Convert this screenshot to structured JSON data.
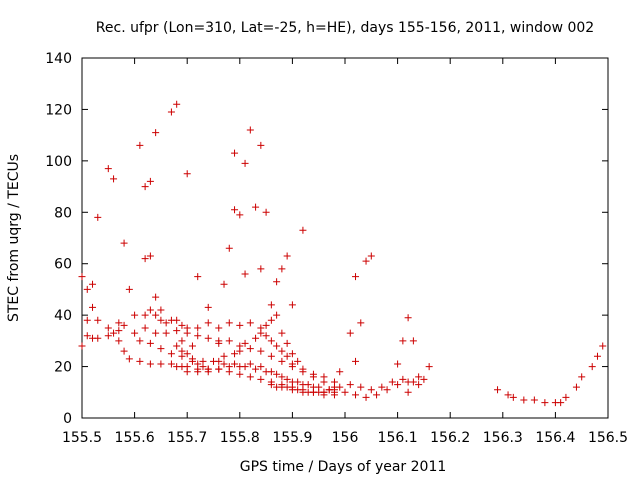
{
  "chart_data": {
    "type": "scatter",
    "title": "Rec. ufpr (Lon=310, Lat=-25, h=HE), days 155-156, 2011, window 002",
    "xlabel": "GPS time / Days of year 2011",
    "ylabel": "STEC from uqrg / TECUs",
    "xlim": [
      155.5,
      156.5
    ],
    "ylim": [
      0,
      140
    ],
    "xticks": [
      155.5,
      155.6,
      155.7,
      155.8,
      155.9,
      156.0,
      156.1,
      156.2,
      156.3,
      156.4,
      156.5
    ],
    "xtick_labels": [
      "155.5",
      "155.6",
      "155.7",
      "155.8",
      "155.9",
      "156",
      "156.1",
      "156.2",
      "156.3",
      "156.4",
      "156.5"
    ],
    "yticks": [
      0,
      20,
      40,
      60,
      80,
      100,
      120,
      140
    ],
    "ytick_labels": [
      "0",
      "20",
      "40",
      "60",
      "80",
      "100",
      "120",
      "140"
    ],
    "marker": "+",
    "marker_color": "#cc0000",
    "grid": false,
    "series": [
      {
        "name": "STEC",
        "points": [
          [
            155.5,
            55
          ],
          [
            155.51,
            50
          ],
          [
            155.52,
            52
          ],
          [
            155.52,
            43
          ],
          [
            155.51,
            38
          ],
          [
            155.53,
            38
          ],
          [
            155.55,
            35
          ],
          [
            155.57,
            34
          ],
          [
            155.6,
            40
          ],
          [
            155.62,
            40
          ],
          [
            155.63,
            42
          ],
          [
            155.64,
            40
          ],
          [
            155.65,
            38
          ],
          [
            155.66,
            37
          ],
          [
            155.68,
            38
          ],
          [
            155.69,
            36
          ],
          [
            155.7,
            35
          ],
          [
            155.5,
            28
          ],
          [
            155.51,
            32
          ],
          [
            155.52,
            31
          ],
          [
            155.53,
            31
          ],
          [
            155.55,
            32
          ],
          [
            155.56,
            33
          ],
          [
            155.57,
            37
          ],
          [
            155.58,
            36
          ],
          [
            155.53,
            78
          ],
          [
            155.55,
            97
          ],
          [
            155.56,
            93
          ],
          [
            155.58,
            68
          ],
          [
            155.59,
            50
          ],
          [
            155.61,
            106
          ],
          [
            155.62,
            90
          ],
          [
            155.63,
            92
          ],
          [
            155.64,
            111
          ],
          [
            155.67,
            119
          ],
          [
            155.68,
            122
          ],
          [
            155.7,
            95
          ],
          [
            155.57,
            30
          ],
          [
            155.58,
            26
          ],
          [
            155.59,
            23
          ],
          [
            155.61,
            22
          ],
          [
            155.63,
            21
          ],
          [
            155.65,
            21
          ],
          [
            155.67,
            21
          ],
          [
            155.68,
            20
          ],
          [
            155.69,
            20
          ],
          [
            155.7,
            20
          ],
          [
            155.72,
            19
          ],
          [
            155.74,
            19
          ],
          [
            155.76,
            19
          ],
          [
            155.78,
            18
          ],
          [
            155.8,
            17
          ],
          [
            155.82,
            16
          ],
          [
            155.84,
            15
          ],
          [
            155.86,
            14
          ],
          [
            155.88,
            13
          ],
          [
            155.9,
            12
          ],
          [
            155.92,
            11
          ],
          [
            155.94,
            10
          ],
          [
            155.96,
            9
          ],
          [
            155.98,
            9
          ],
          [
            155.6,
            33
          ],
          [
            155.62,
            35
          ],
          [
            155.64,
            33
          ],
          [
            155.66,
            33
          ],
          [
            155.68,
            34
          ],
          [
            155.7,
            33
          ],
          [
            155.72,
            32
          ],
          [
            155.74,
            31
          ],
          [
            155.76,
            30
          ],
          [
            155.78,
            30
          ],
          [
            155.8,
            28
          ],
          [
            155.82,
            27
          ],
          [
            155.84,
            26
          ],
          [
            155.86,
            24
          ],
          [
            155.88,
            22
          ],
          [
            155.9,
            20
          ],
          [
            155.92,
            18
          ],
          [
            155.94,
            16
          ],
          [
            155.96,
            14
          ],
          [
            155.98,
            12
          ],
          [
            155.61,
            30
          ],
          [
            155.63,
            29
          ],
          [
            155.65,
            27
          ],
          [
            155.67,
            25
          ],
          [
            155.69,
            24
          ],
          [
            155.71,
            23
          ],
          [
            155.73,
            22
          ],
          [
            155.75,
            22
          ],
          [
            155.77,
            21
          ],
          [
            155.79,
            21
          ],
          [
            155.81,
            20
          ],
          [
            155.83,
            19
          ],
          [
            155.85,
            18
          ],
          [
            155.87,
            17
          ],
          [
            155.89,
            15
          ],
          [
            155.91,
            14
          ],
          [
            155.93,
            13
          ],
          [
            155.95,
            12
          ],
          [
            155.97,
            11
          ],
          [
            155.62,
            62
          ],
          [
            155.63,
            63
          ],
          [
            155.64,
            47
          ],
          [
            155.65,
            42
          ],
          [
            155.67,
            38
          ],
          [
            155.69,
            30
          ],
          [
            155.71,
            28
          ],
          [
            155.72,
            55
          ],
          [
            155.74,
            43
          ],
          [
            155.76,
            29
          ],
          [
            155.77,
            52
          ],
          [
            155.78,
            66
          ],
          [
            155.79,
            103
          ],
          [
            155.79,
            81
          ],
          [
            155.8,
            79
          ],
          [
            155.81,
            99
          ],
          [
            155.81,
            56
          ],
          [
            155.82,
            112
          ],
          [
            155.83,
            82
          ],
          [
            155.84,
            106
          ],
          [
            155.84,
            58
          ],
          [
            155.85,
            80
          ],
          [
            155.86,
            44
          ],
          [
            155.87,
            53
          ],
          [
            155.88,
            58
          ],
          [
            155.89,
            63
          ],
          [
            155.9,
            44
          ],
          [
            155.92,
            73
          ],
          [
            155.68,
            28
          ],
          [
            155.69,
            26
          ],
          [
            155.7,
            25
          ],
          [
            155.71,
            22
          ],
          [
            155.72,
            21
          ],
          [
            155.73,
            20
          ],
          [
            155.74,
            19
          ],
          [
            155.76,
            22
          ],
          [
            155.77,
            24
          ],
          [
            155.79,
            25
          ],
          [
            155.8,
            26
          ],
          [
            155.81,
            29
          ],
          [
            155.83,
            31
          ],
          [
            155.84,
            33
          ],
          [
            155.85,
            36
          ],
          [
            155.86,
            38
          ],
          [
            155.87,
            40
          ],
          [
            155.88,
            33
          ],
          [
            155.89,
            29
          ],
          [
            155.9,
            25
          ],
          [
            155.91,
            22
          ],
          [
            155.7,
            18
          ],
          [
            155.72,
            18
          ],
          [
            155.74,
            18
          ],
          [
            155.76,
            19
          ],
          [
            155.78,
            20
          ],
          [
            155.8,
            20
          ],
          [
            155.82,
            21
          ],
          [
            155.84,
            20
          ],
          [
            155.86,
            18
          ],
          [
            155.88,
            16
          ],
          [
            155.9,
            14
          ],
          [
            155.92,
            13
          ],
          [
            155.94,
            12
          ],
          [
            155.96,
            10
          ],
          [
            155.98,
            10
          ],
          [
            155.72,
            35
          ],
          [
            155.74,
            37
          ],
          [
            155.76,
            35
          ],
          [
            155.78,
            37
          ],
          [
            155.8,
            36
          ],
          [
            155.82,
            37
          ],
          [
            155.84,
            35
          ],
          [
            155.85,
            32
          ],
          [
            155.86,
            30
          ],
          [
            155.87,
            28
          ],
          [
            155.88,
            26
          ],
          [
            155.89,
            24
          ],
          [
            155.9,
            21
          ],
          [
            155.92,
            19
          ],
          [
            155.94,
            17
          ],
          [
            155.96,
            16
          ],
          [
            155.98,
            14
          ],
          [
            155.86,
            13
          ],
          [
            155.87,
            12
          ],
          [
            155.88,
            12
          ],
          [
            155.89,
            12
          ],
          [
            155.9,
            11
          ],
          [
            155.91,
            11
          ],
          [
            155.92,
            10
          ],
          [
            155.93,
            10
          ],
          [
            155.94,
            10
          ],
          [
            155.95,
            10
          ],
          [
            155.96,
            10
          ],
          [
            155.97,
            11
          ],
          [
            155.98,
            11
          ],
          [
            155.99,
            12
          ],
          [
            155.99,
            18
          ],
          [
            156.01,
            33
          ],
          [
            156.02,
            55
          ],
          [
            156.03,
            37
          ],
          [
            156.04,
            61
          ],
          [
            156.05,
            63
          ],
          [
            156.02,
            22
          ],
          [
            156.0,
            10
          ],
          [
            156.02,
            9
          ],
          [
            156.04,
            8
          ],
          [
            156.06,
            9
          ],
          [
            156.08,
            11
          ],
          [
            156.1,
            13
          ],
          [
            156.12,
            14
          ],
          [
            156.14,
            16
          ],
          [
            156.16,
            20
          ],
          [
            156.01,
            13
          ],
          [
            156.03,
            12
          ],
          [
            156.05,
            11
          ],
          [
            156.07,
            12
          ],
          [
            156.09,
            14
          ],
          [
            156.11,
            15
          ],
          [
            156.13,
            14
          ],
          [
            156.15,
            15
          ],
          [
            156.1,
            21
          ],
          [
            156.11,
            30
          ],
          [
            156.12,
            39
          ],
          [
            156.13,
            30
          ],
          [
            156.14,
            13
          ],
          [
            156.12,
            10
          ],
          [
            156.29,
            11
          ],
          [
            156.31,
            9
          ],
          [
            156.32,
            8
          ],
          [
            156.34,
            7
          ],
          [
            156.36,
            7
          ],
          [
            156.38,
            6
          ],
          [
            156.4,
            6
          ],
          [
            156.41,
            6
          ],
          [
            156.42,
            8
          ],
          [
            156.44,
            12
          ],
          [
            156.45,
            16
          ],
          [
            156.47,
            20
          ],
          [
            156.48,
            24
          ],
          [
            156.49,
            28
          ]
        ]
      }
    ]
  }
}
